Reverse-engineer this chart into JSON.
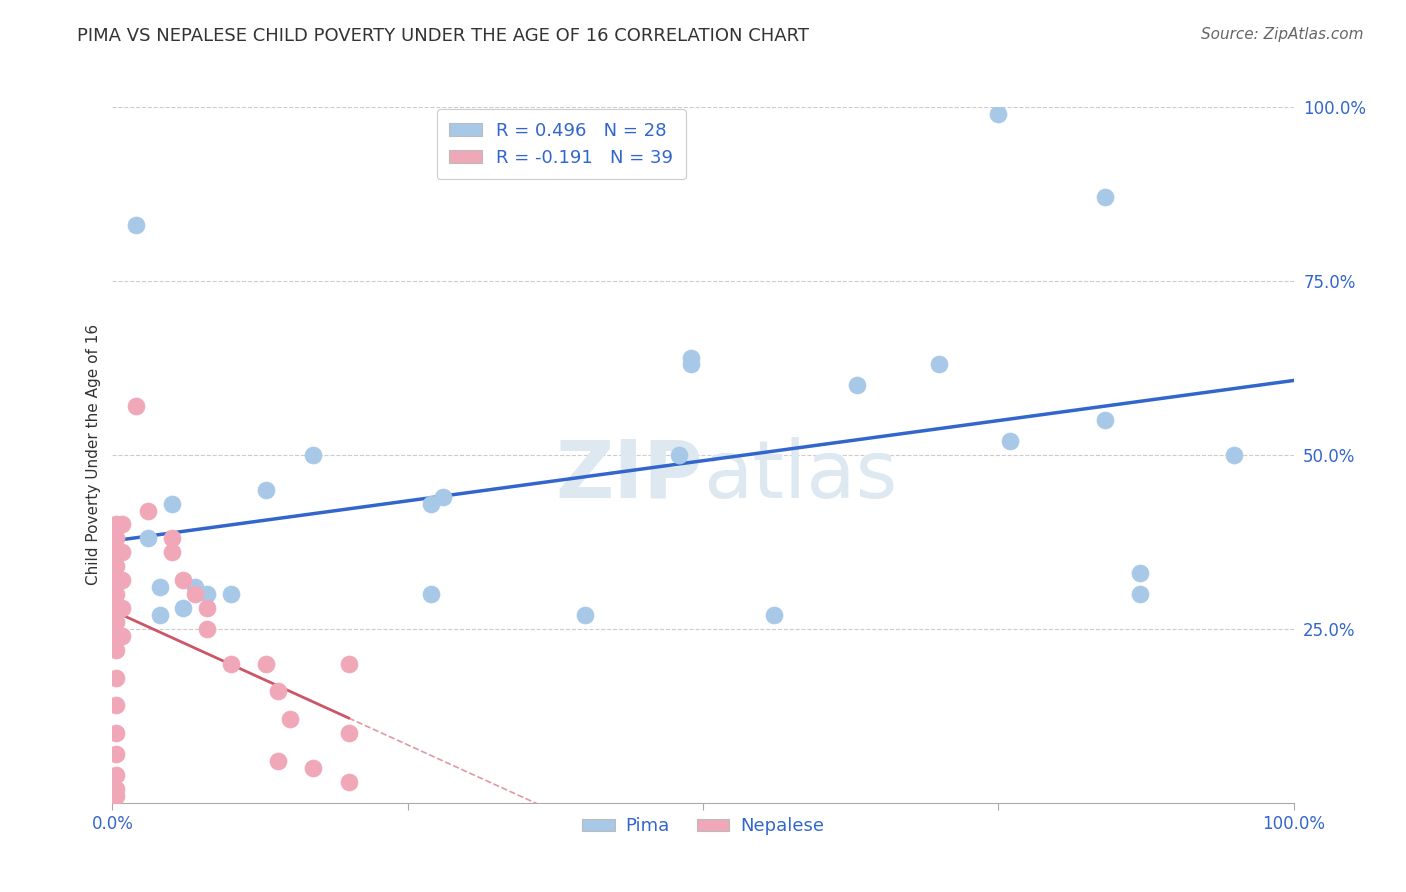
{
  "title": "PIMA VS NEPALESE CHILD POVERTY UNDER THE AGE OF 16 CORRELATION CHART",
  "source": "Source: ZipAtlas.com",
  "ylabel": "Child Poverty Under the Age of 16",
  "xlim": [
    0.0,
    1.0
  ],
  "ylim": [
    0.0,
    1.0
  ],
  "pima_R": "R = 0.496",
  "pima_N": "N = 28",
  "nepalese_R": "R = -0.191",
  "nepalese_N": "N = 39",
  "pima_color": "#a8c8e8",
  "pima_line_color": "#3366cc",
  "nepalese_color": "#f0a8b8",
  "nepalese_line_color": "#cc5566",
  "watermark_color": "#dde8f0",
  "pima_x": [
    0.02,
    0.75,
    0.84,
    0.56,
    0.63,
    0.7,
    0.76,
    0.87,
    0.03,
    0.05,
    0.08,
    0.1,
    0.13,
    0.17,
    0.04,
    0.07,
    0.04,
    0.06,
    0.4,
    0.95,
    0.84,
    0.48,
    0.49,
    0.27,
    0.28,
    0.27,
    0.87,
    0.49
  ],
  "pima_y": [
    0.83,
    0.99,
    0.87,
    0.27,
    0.6,
    0.63,
    0.52,
    0.33,
    0.38,
    0.43,
    0.3,
    0.3,
    0.45,
    0.5,
    0.31,
    0.31,
    0.27,
    0.28,
    0.27,
    0.5,
    0.55,
    0.5,
    0.63,
    0.43,
    0.44,
    0.3,
    0.3,
    0.64
  ],
  "nepalese_x": [
    0.003,
    0.003,
    0.003,
    0.003,
    0.003,
    0.003,
    0.003,
    0.003,
    0.003,
    0.003,
    0.003,
    0.003,
    0.003,
    0.003,
    0.003,
    0.003,
    0.003,
    0.008,
    0.008,
    0.008,
    0.008,
    0.008,
    0.02,
    0.03,
    0.05,
    0.05,
    0.06,
    0.07,
    0.08,
    0.08,
    0.1,
    0.13,
    0.14,
    0.14,
    0.15,
    0.17,
    0.2,
    0.2,
    0.2
  ],
  "nepalese_y": [
    0.4,
    0.38,
    0.36,
    0.34,
    0.32,
    0.3,
    0.28,
    0.26,
    0.24,
    0.22,
    0.18,
    0.14,
    0.1,
    0.07,
    0.04,
    0.02,
    0.01,
    0.4,
    0.36,
    0.32,
    0.28,
    0.24,
    0.57,
    0.42,
    0.38,
    0.36,
    0.32,
    0.3,
    0.28,
    0.25,
    0.2,
    0.2,
    0.16,
    0.06,
    0.12,
    0.05,
    0.2,
    0.1,
    0.03
  ],
  "title_fontsize": 13,
  "source_fontsize": 11,
  "axis_label_fontsize": 11,
  "tick_fontsize": 12,
  "legend_fontsize": 13
}
